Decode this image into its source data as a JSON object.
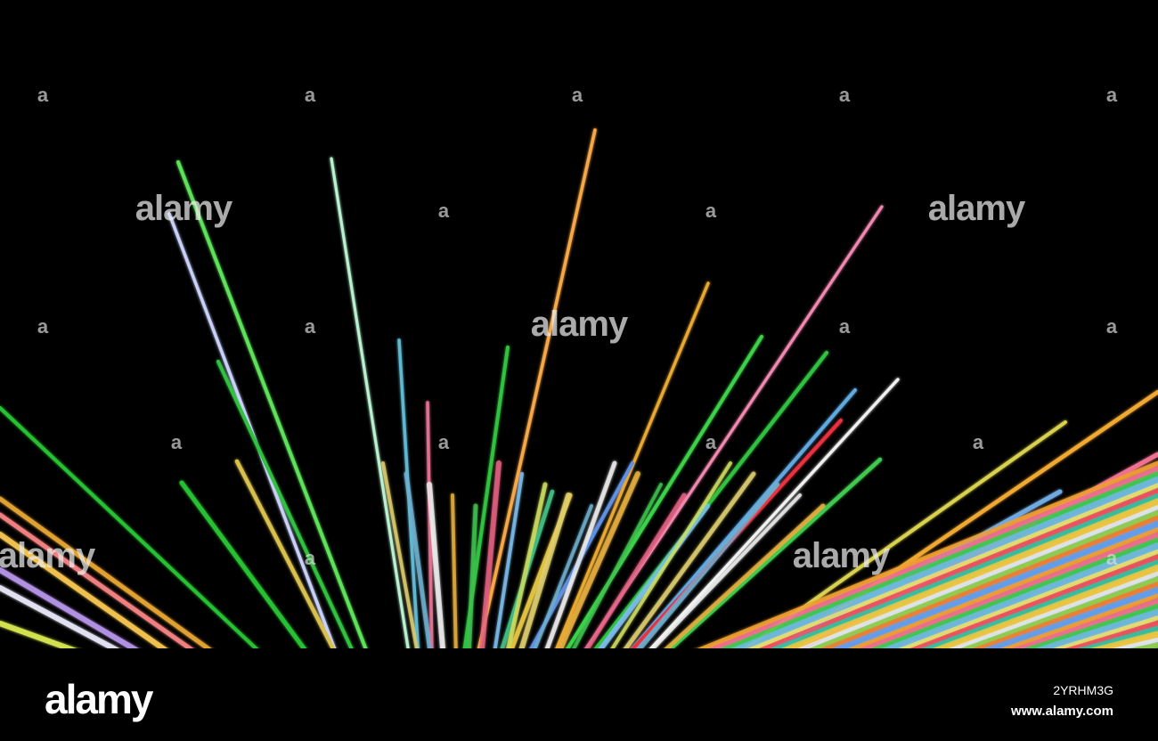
{
  "image": {
    "description_colors": {
      "background": "#000000",
      "accent_green": "#22c02a",
      "accent_orange": "#f0a040",
      "accent_pink": "#f06090"
    }
  },
  "watermark": {
    "large_text": "alamy",
    "small_text": "a"
  },
  "footer": {
    "logo": "alamy",
    "image_id": "2YRHM3G",
    "url": "www.alamy.com"
  }
}
